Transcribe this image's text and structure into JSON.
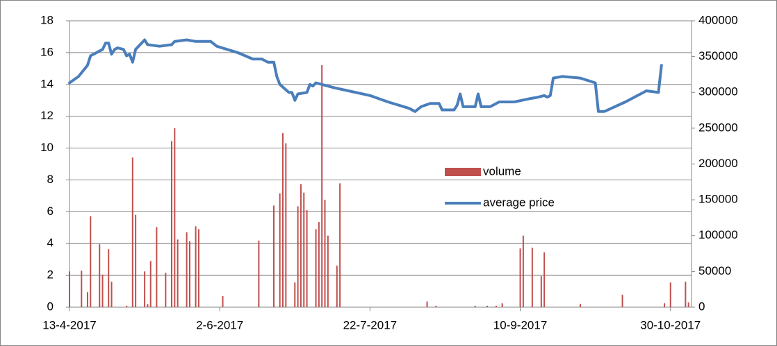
{
  "chart_data": {
    "type": "bar-line",
    "xlim": [
      "13-4-2017",
      "6-11-2017"
    ],
    "xticks": [
      "13-4-2017",
      "2-6-2017",
      "22-7-2017",
      "10-9-2017",
      "30-10-2017"
    ],
    "ylim": [
      0,
      18
    ],
    "yticks": [
      0,
      2,
      4,
      6,
      8,
      10,
      12,
      14,
      16,
      18
    ],
    "y2lim": [
      0,
      400000
    ],
    "y2ticks": [
      0,
      50000,
      100000,
      150000,
      200000,
      250000,
      300000,
      350000,
      400000
    ],
    "grid": true,
    "series": [
      {
        "name": "volume",
        "type": "bar",
        "axis": "y2",
        "color": "#c0504d",
        "x": [
          "13-4-2017",
          "17-4-2017",
          "19-4-2017",
          "20-4-2017",
          "23-4-2017",
          "24-4-2017",
          "26-4-2017",
          "27-4-2017",
          "2-5-2017",
          "4-5-2017",
          "5-5-2017",
          "8-5-2017",
          "9-5-2017",
          "10-5-2017",
          "12-5-2017",
          "15-5-2017",
          "17-5-2017",
          "18-5-2017",
          "19-5-2017",
          "22-5-2017",
          "23-5-2017",
          "25-5-2017",
          "26-5-2017",
          "3-6-2017",
          "15-6-2017",
          "20-6-2017",
          "22-6-2017",
          "23-6-2017",
          "24-6-2017",
          "27-6-2017",
          "28-6-2017",
          "29-6-2017",
          "30-6-2017",
          "1-7-2017",
          "4-7-2017",
          "5-7-2017",
          "6-7-2017",
          "7-7-2017",
          "8-7-2017",
          "11-7-2017",
          "12-7-2017",
          "10-8-2017",
          "13-8-2017",
          "26-8-2017",
          "30-8-2017",
          "2-9-2017",
          "4-9-2017",
          "10-9-2017",
          "11-9-2017",
          "14-9-2017",
          "17-9-2017",
          "18-9-2017",
          "30-9-2017",
          "14-10-2017",
          "28-10-2017",
          "30-10-2017",
          "4-11-2017",
          "5-11-2017"
        ],
        "values": [
          50000,
          51000,
          21000,
          127000,
          88000,
          45500,
          81000,
          35500,
          2000,
          209000,
          129000,
          50000,
          4500,
          64500,
          112000,
          48000,
          232000,
          250000,
          94500,
          104500,
          92000,
          113000,
          109000,
          15500,
          93000,
          142000,
          159000,
          243000,
          229000,
          34500,
          141000,
          172000,
          160000,
          135500,
          109000,
          119000,
          338000,
          150000,
          100000,
          58000,
          173000,
          8000,
          2000,
          2000,
          2000,
          2000,
          5500,
          82000,
          100000,
          83000,
          43500,
          76500,
          4500,
          17500,
          5500,
          34500,
          35500,
          6500
        ]
      },
      {
        "name": "average price",
        "type": "line",
        "color": "#4a7ebb",
        "x": [
          "13-4-2017",
          "16-4-2017",
          "19-4-2017",
          "20-4-2017",
          "22-4-2017",
          "24-4-2017",
          "25-4-2017",
          "26-4-2017",
          "27-4-2017",
          "28-4-2017",
          "29-4-2017",
          "1-5-2017",
          "2-5-2017",
          "3-5-2017",
          "4-5-2017",
          "5-5-2017",
          "7-5-2017",
          "8-5-2017",
          "9-5-2017",
          "13-5-2017",
          "17-5-2017",
          "18-5-2017",
          "22-5-2017",
          "25-5-2017",
          "30-5-2017",
          "1-6-2017",
          "8-6-2017",
          "13-6-2017",
          "16-6-2017",
          "18-6-2017",
          "20-6-2017",
          "21-6-2017",
          "22-6-2017",
          "25-6-2017",
          "26-6-2017",
          "27-6-2017",
          "28-6-2017",
          "1-7-2017",
          "2-7-2017",
          "3-7-2017",
          "4-7-2017",
          "6-7-2017",
          "10-7-2017",
          "22-7-2017",
          "28-7-2017",
          "4-8-2017",
          "6-8-2017",
          "8-8-2017",
          "11-8-2017",
          "14-8-2017",
          "15-8-2017",
          "19-8-2017",
          "20-8-2017",
          "21-8-2017",
          "22-8-2017",
          "26-8-2017",
          "27-8-2017",
          "28-8-2017",
          "31-8-2017",
          "3-9-2017",
          "8-9-2017",
          "13-9-2017",
          "16-9-2017",
          "18-9-2017",
          "19-9-2017",
          "20-9-2017",
          "21-9-2017",
          "24-9-2017",
          "30-9-2017",
          "5-10-2017",
          "6-10-2017",
          "8-10-2017",
          "15-10-2017",
          "22-10-2017",
          "26-10-2017",
          "27-10-2017"
        ],
        "values": [
          14.1,
          14.5,
          15.2,
          15.8,
          16.0,
          16.2,
          16.6,
          16.6,
          15.9,
          16.2,
          16.3,
          16.2,
          15.8,
          15.9,
          15.4,
          16.2,
          16.6,
          16.8,
          16.5,
          16.4,
          16.5,
          16.7,
          16.8,
          16.7,
          16.7,
          16.4,
          16.0,
          15.6,
          15.6,
          15.4,
          15.4,
          14.5,
          14.0,
          13.5,
          13.5,
          13.0,
          13.4,
          13.5,
          14.0,
          13.9,
          14.1,
          14.0,
          13.8,
          13.3,
          12.9,
          12.5,
          12.3,
          12.6,
          12.8,
          12.8,
          12.4,
          12.4,
          12.7,
          13.4,
          12.6,
          12.6,
          13.4,
          12.6,
          12.6,
          12.9,
          12.9,
          13.1,
          13.2,
          13.3,
          13.2,
          13.3,
          14.4,
          14.5,
          14.4,
          14.1,
          12.3,
          12.3,
          12.9,
          13.6,
          13.5,
          15.2
        ]
      }
    ]
  }
}
